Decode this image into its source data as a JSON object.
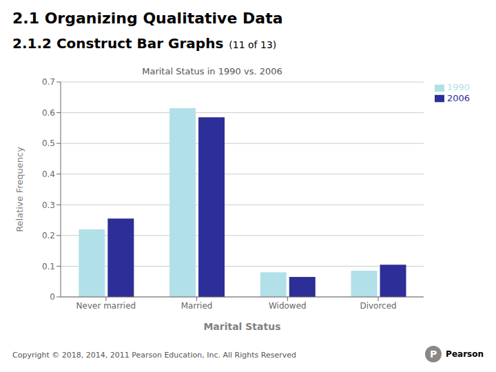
{
  "chart_data": {
    "type": "bar",
    "title": "Marital Status in 1990 vs. 2006",
    "xlabel": "Marital Status",
    "ylabel": "Relative Frequency",
    "categories": [
      "Never married",
      "Married",
      "Widowed",
      "Divorced"
    ],
    "series": [
      {
        "name": "1990",
        "color": "#b2e0e8",
        "values": [
          0.22,
          0.615,
          0.08,
          0.085
        ]
      },
      {
        "name": "2006",
        "color": "#2e2e99",
        "values": [
          0.255,
          0.585,
          0.065,
          0.105
        ]
      }
    ],
    "ylim": [
      0,
      0.7
    ],
    "yticks": [
      0,
      0.1,
      0.2,
      0.3,
      0.4,
      0.5,
      0.6,
      0.7
    ],
    "grid": true,
    "legend": "right"
  },
  "annotations": [
    "2.1 Organizing Qualitative Data",
    "2.1.2 Construct Bar Graphs",
    "(11 of 13)",
    "Copyright © 2018, 2014, 2011 Pearson Education, Inc. All Rights Reserved",
    "P",
    "Pearson"
  ]
}
